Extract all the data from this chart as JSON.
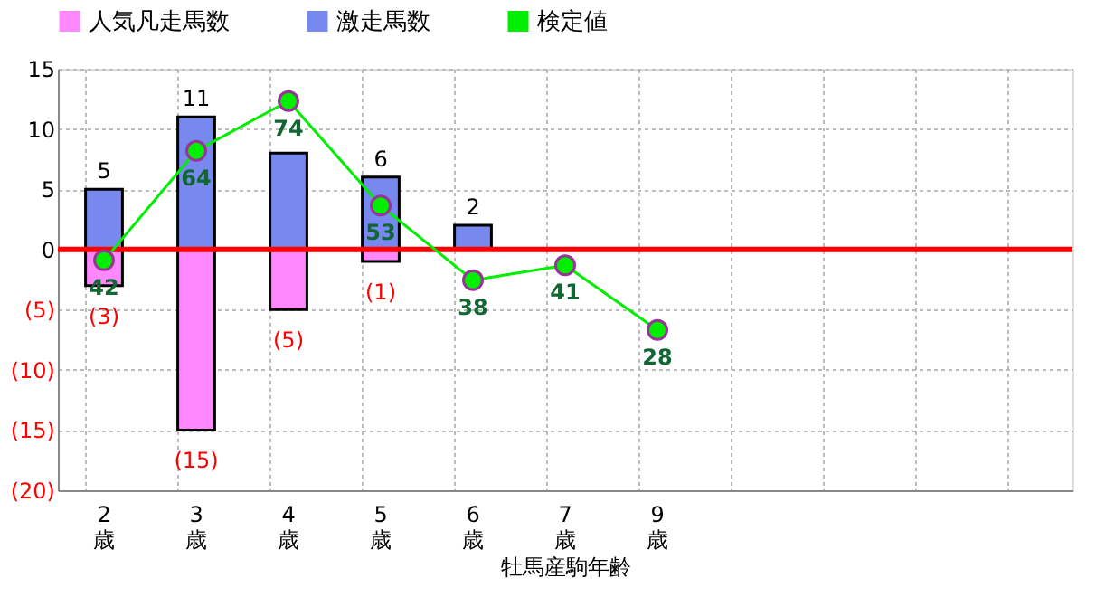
{
  "chart_data": {
    "type": "bar",
    "stacked": true,
    "xlabel": "牡馬産駒年齢",
    "categories": [
      "2歳",
      "3歳",
      "4歳",
      "5歳",
      "6歳",
      "7歳",
      "9歳",
      null,
      null,
      null,
      null
    ],
    "series": [
      {
        "name": "人気凡走馬数",
        "color": "#ff88ff",
        "values": [
          -3,
          -15,
          -5,
          -1,
          null,
          null,
          null,
          null,
          null,
          null,
          null
        ],
        "value_labels": [
          "(3)",
          "(15)",
          "(5)",
          "(1)",
          null,
          null,
          null,
          null,
          null,
          null,
          null
        ]
      },
      {
        "name": "激走馬数",
        "color": "#7788ee",
        "values": [
          5,
          11,
          8,
          6,
          2,
          null,
          null,
          null,
          null,
          null,
          null
        ],
        "value_labels": [
          "5",
          "11",
          null,
          "6",
          "2",
          null,
          null,
          null,
          null,
          null,
          null
        ]
      },
      {
        "name": "検定値",
        "type": "line",
        "axis": "y2",
        "color": "#00ee00",
        "marker": "circle",
        "data_labels": true,
        "values": [
          42,
          64,
          74,
          53,
          38,
          41,
          28,
          null,
          null,
          null,
          null
        ]
      }
    ],
    "ylim": [
      -20,
      15
    ],
    "yticks": [
      {
        "value": -20,
        "label": "(20)"
      },
      {
        "value": -15,
        "label": "(15)"
      },
      {
        "value": -10,
        "label": "(10)"
      },
      {
        "value": -5,
        "label": "(5)"
      },
      0,
      5,
      10,
      15
    ],
    "y2lim": [
      -4.2,
      80.5
    ],
    "ref_lines": [
      {
        "axis": "y",
        "value": 0,
        "color": "#ff0000"
      }
    ],
    "grid": true,
    "legend": "top"
  }
}
